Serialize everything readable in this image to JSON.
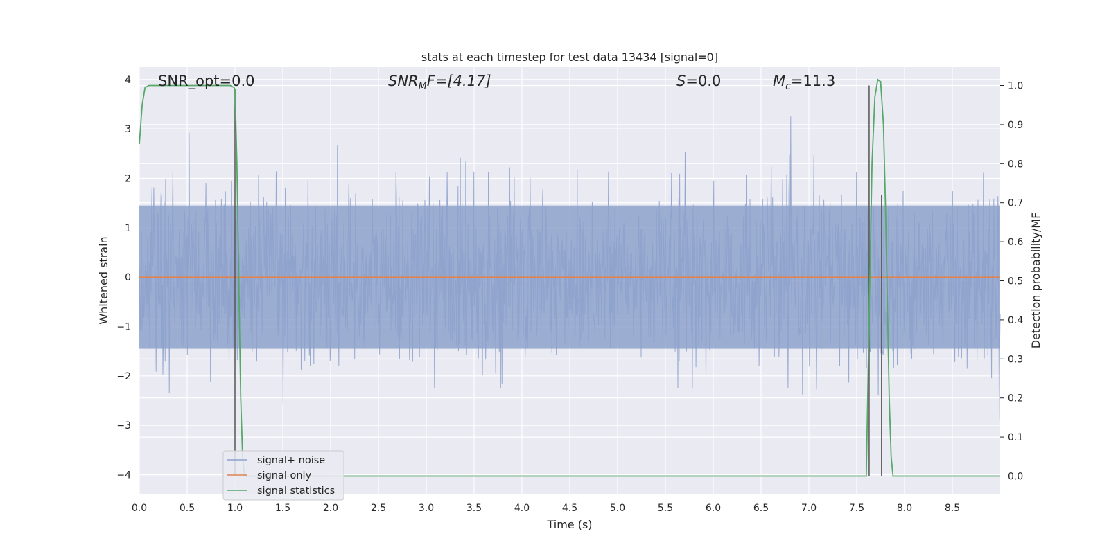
{
  "chart_data": {
    "type": "line",
    "title": "stats at each timestep for test data 13434 [signal=0]",
    "xlabel": "Time (s)",
    "ylabel": "Whitened strain",
    "y2label": "Detection probability/MF",
    "xlim": [
      0,
      9
    ],
    "ylim": [
      -4.4,
      4.25
    ],
    "y2lim": [
      -0.047,
      1.047
    ],
    "xticks": [
      "0.0",
      "0.5",
      "1.0",
      "1.5",
      "2.0",
      "2.5",
      "3.0",
      "3.5",
      "4.0",
      "4.5",
      "5.0",
      "5.5",
      "6.0",
      "6.5",
      "7.0",
      "7.5",
      "8.0",
      "8.5"
    ],
    "yticks": [
      "4",
      "3",
      "2",
      "1",
      "0",
      "−1",
      "−2",
      "−3",
      "−4"
    ],
    "y2ticks": [
      "1.0",
      "0.9",
      "0.8",
      "0.7",
      "0.6",
      "0.5",
      "0.4",
      "0.3",
      "0.2",
      "0.1",
      "0.0"
    ],
    "grid": true,
    "legend_position": "lower-left",
    "annotations": {
      "snr_opt": "SNR_opt=0.0",
      "snr_mf_base": "SNR",
      "snr_mf_sub": "M",
      "snr_mf_rest": "F=[4.17]",
      "s_italic": "S",
      "s_rest": "=0.0",
      "mc_base": "M",
      "mc_sub": "c",
      "mc_rest": "=11.3"
    },
    "series": [
      {
        "name": "signal+ noise",
        "color": "#8ea2cc",
        "axis": "left",
        "description_values": "dense whitened noise between about -3.5 and 3.9"
      },
      {
        "name": "signal only",
        "color": "#dd8452",
        "axis": "left",
        "x": [
          0,
          9
        ],
        "y": [
          0,
          0
        ]
      },
      {
        "name": "signal statistics",
        "color": "#55a868",
        "axis": "right",
        "x": [
          0.0,
          0.03,
          0.06,
          0.1,
          0.15,
          0.2,
          0.3,
          0.5,
          0.7,
          0.9,
          0.95,
          0.99,
          1.0,
          1.02,
          1.04,
          1.06,
          1.08,
          1.1,
          1.2,
          2.0,
          4.0,
          6.0,
          7.0,
          7.2,
          7.3,
          7.4,
          7.5,
          7.55,
          7.6,
          7.63,
          7.66,
          7.69,
          7.72,
          7.75,
          7.78,
          7.8,
          7.82,
          7.84,
          7.86,
          7.88,
          7.9,
          7.95,
          8.0,
          8.1,
          8.3,
          9.0
        ],
        "y": [
          0.85,
          0.95,
          0.995,
          1.0,
          1.0,
          1.0,
          1.0,
          1.0,
          1.0,
          1.0,
          1.0,
          0.995,
          0.99,
          0.8,
          0.5,
          0.2,
          0.05,
          0.0,
          0.0,
          0.0,
          0.0,
          0.0,
          0.0,
          0.0,
          0.0,
          0.0,
          0.0,
          0.0,
          0.0,
          0.4,
          0.8,
          0.97,
          1.015,
          1.01,
          0.9,
          0.7,
          0.45,
          0.2,
          0.05,
          0.0,
          0.0,
          0.0,
          0.0,
          0.0,
          0.0,
          0.0
        ]
      }
    ],
    "vlines": [
      {
        "x": 1.0,
        "y_top": 0.992,
        "color": "#555555"
      },
      {
        "x": 7.63,
        "y_top": 1.0,
        "color": "#555555"
      },
      {
        "x": 7.76,
        "y_top": 0.72,
        "color": "#555555"
      }
    ]
  }
}
